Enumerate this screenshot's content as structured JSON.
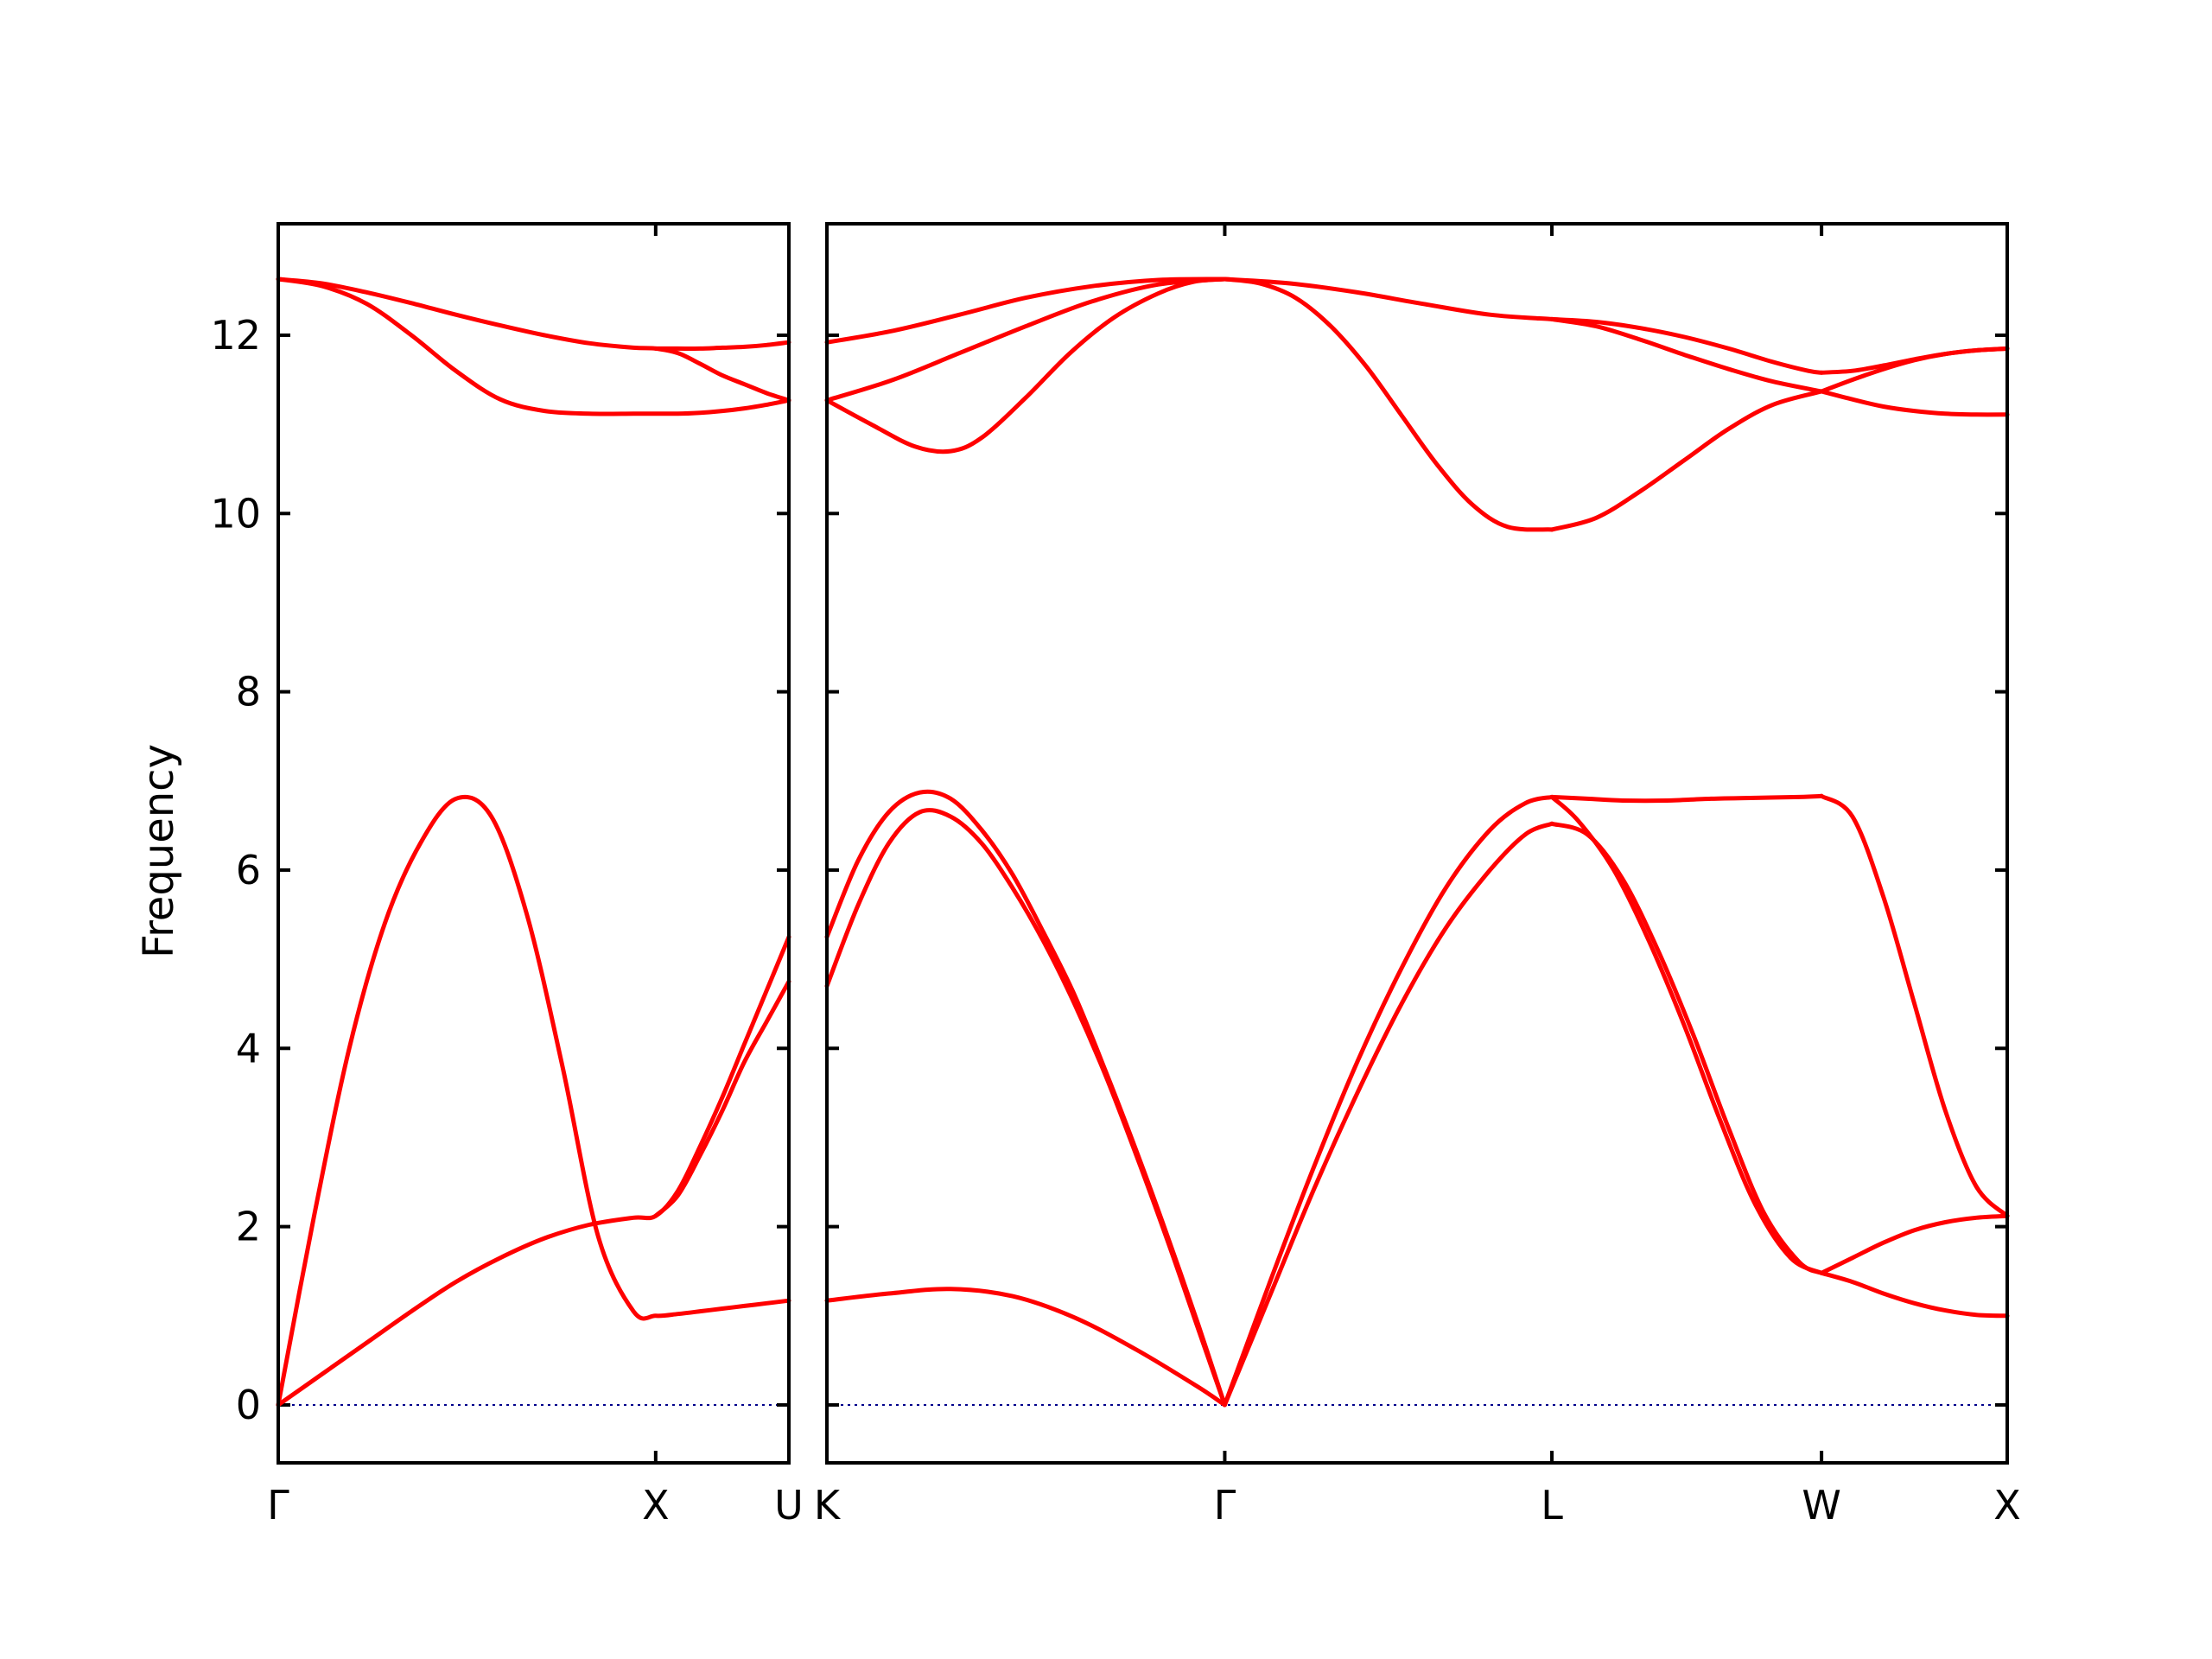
{
  "chart_data": {
    "type": "line",
    "title": "",
    "ylabel": "Frequency",
    "ylim": [
      -0.65,
      13.25
    ],
    "yticks": [
      0,
      2,
      4,
      6,
      8,
      10,
      12
    ],
    "band_color": "#ff0000",
    "zero_line_color": "#00008b",
    "panels": [
      {
        "xlim": [
          0,
          1.15
        ],
        "kpoints": [
          {
            "label": "Γ",
            "x": 0
          },
          {
            "label": "X",
            "x": 0.85
          },
          {
            "label": "U",
            "x": 1.15
          }
        ],
        "series": [
          {
            "x": [
              0,
              0.08,
              0.16,
              0.24,
              0.32,
              0.4,
              0.48,
              0.56,
              0.64,
              0.72,
              0.8,
              0.85,
              0.9,
              0.95,
              1.0,
              1.05,
              1.1,
              1.15
            ],
            "values": [
              0,
              2.1,
              4.0,
              5.4,
              6.3,
              6.8,
              6.6,
              5.5,
              3.8,
              1.9,
              1.05,
              1.0,
              1.02,
              1.05,
              1.08,
              1.11,
              1.14,
              1.17
            ]
          },
          {
            "x": [
              0,
              0.1,
              0.2,
              0.3,
              0.4,
              0.5,
              0.6,
              0.7,
              0.8,
              0.85,
              0.9,
              0.95,
              1.0,
              1.05,
              1.1,
              1.15
            ],
            "values": [
              0,
              0.35,
              0.7,
              1.05,
              1.38,
              1.65,
              1.87,
              2.02,
              2.1,
              2.12,
              2.4,
              2.9,
              3.45,
              4.05,
              4.65,
              5.25
            ]
          },
          {
            "x": [
              0.85,
              0.9,
              0.95,
              1.0,
              1.05,
              1.1,
              1.15
            ],
            "values": [
              2.12,
              2.35,
              2.8,
              3.3,
              3.85,
              4.3,
              4.75
            ]
          },
          {
            "x": [
              0,
              0.1,
              0.2,
              0.3,
              0.4,
              0.5,
              0.6,
              0.7,
              0.8,
              0.85,
              0.9,
              0.95,
              1.0,
              1.05,
              1.1,
              1.15
            ],
            "values": [
              12.63,
              12.55,
              12.35,
              12.0,
              11.6,
              11.28,
              11.15,
              11.12,
              11.12,
              11.12,
              11.12,
              11.13,
              11.15,
              11.18,
              11.22,
              11.27
            ]
          },
          {
            "x": [
              0,
              0.1,
              0.2,
              0.3,
              0.4,
              0.5,
              0.6,
              0.7,
              0.8,
              0.85,
              0.9,
              0.95,
              1.0,
              1.05,
              1.1,
              1.15
            ],
            "values": [
              12.63,
              12.58,
              12.48,
              12.36,
              12.23,
              12.11,
              12.0,
              11.91,
              11.86,
              11.85,
              11.8,
              11.68,
              11.55,
              11.45,
              11.35,
              11.27
            ]
          },
          {
            "x": [
              0.85,
              0.9,
              0.95,
              1.0,
              1.05,
              1.1,
              1.15
            ],
            "values": [
              11.85,
              11.85,
              11.85,
              11.86,
              11.87,
              11.89,
              11.92
            ]
          }
        ]
      },
      {
        "xlim": [
          0,
          2.67
        ],
        "kpoints": [
          {
            "label": "K",
            "x": 0
          },
          {
            "label": "Γ",
            "x": 0.9
          },
          {
            "label": "L",
            "x": 1.64
          },
          {
            "label": "W",
            "x": 2.25
          },
          {
            "label": "X",
            "x": 2.67
          }
        ],
        "series": [
          {
            "x": [
              0,
              0.07,
              0.14,
              0.21,
              0.28,
              0.35,
              0.42,
              0.49,
              0.56,
              0.63,
              0.7,
              0.77,
              0.84,
              0.9
            ],
            "values": [
              4.7,
              5.6,
              6.3,
              6.65,
              6.6,
              6.3,
              5.8,
              5.2,
              4.5,
              3.7,
              2.8,
              1.85,
              0.85,
              0
            ]
          },
          {
            "x": [
              0,
              0.07,
              0.14,
              0.21,
              0.28,
              0.35,
              0.42,
              0.49,
              0.56,
              0.63,
              0.7,
              0.77,
              0.84,
              0.9
            ],
            "values": [
              5.25,
              6.1,
              6.65,
              6.87,
              6.8,
              6.45,
              5.95,
              5.3,
              4.6,
              3.75,
              2.85,
              1.9,
              0.9,
              0
            ]
          },
          {
            "x": [
              0,
              0.14,
              0.28,
              0.42,
              0.56,
              0.7,
              0.84,
              0.9
            ],
            "values": [
              1.17,
              1.25,
              1.3,
              1.22,
              0.98,
              0.62,
              0.2,
              0
            ]
          },
          {
            "x": [
              0.9,
              1.0,
              1.1,
              1.2,
              1.3,
              1.4,
              1.5,
              1.58,
              1.64
            ],
            "values": [
              0,
              1.2,
              2.4,
              3.5,
              4.5,
              5.35,
              6.0,
              6.4,
              6.52
            ]
          },
          {
            "x": [
              0.9,
              1.0,
              1.1,
              1.2,
              1.3,
              1.4,
              1.5,
              1.58,
              1.64
            ],
            "values": [
              0,
              1.35,
              2.65,
              3.85,
              4.9,
              5.8,
              6.45,
              6.75,
              6.82
            ]
          },
          {
            "x": [
              1.64,
              1.72,
              1.8,
              1.88,
              1.96,
              2.04,
              2.12,
              2.2,
              2.25
            ],
            "values": [
              6.52,
              6.4,
              5.9,
              5.1,
              4.15,
              3.1,
              2.15,
              1.6,
              1.48
            ]
          },
          {
            "x": [
              1.64,
              1.7,
              1.78,
              1.86,
              1.94,
              2.02,
              2.1,
              2.18,
              2.25
            ],
            "values": [
              6.82,
              6.55,
              6.0,
              5.2,
              4.25,
              3.2,
              2.25,
              1.65,
              1.48
            ]
          },
          {
            "x": [
              1.64,
              1.72,
              1.8,
              1.9,
              2.0,
              2.1,
              2.2,
              2.25
            ],
            "values": [
              6.82,
              6.8,
              6.78,
              6.78,
              6.8,
              6.81,
              6.82,
              6.83
            ]
          },
          {
            "x": [
              2.25,
              2.32,
              2.39,
              2.46,
              2.53,
              2.6,
              2.67
            ],
            "values": [
              6.83,
              6.6,
              5.7,
              4.5,
              3.3,
              2.45,
              2.12
            ]
          },
          {
            "x": [
              2.25,
              2.32,
              2.39,
              2.46,
              2.53,
              2.6,
              2.67
            ],
            "values": [
              1.48,
              1.38,
              1.25,
              1.14,
              1.06,
              1.01,
              1.0
            ]
          },
          {
            "x": [
              2.25,
              2.32,
              2.39,
              2.46,
              2.53,
              2.6,
              2.67
            ],
            "values": [
              1.48,
              1.65,
              1.82,
              1.96,
              2.05,
              2.1,
              2.12
            ]
          },
          {
            "x": [
              0,
              0.1,
              0.2,
              0.28,
              0.35,
              0.45,
              0.55,
              0.65,
              0.75,
              0.83,
              0.9
            ],
            "values": [
              11.27,
              11.0,
              10.75,
              10.7,
              10.85,
              11.3,
              11.8,
              12.2,
              12.47,
              12.6,
              12.63
            ]
          },
          {
            "x": [
              0,
              0.15,
              0.3,
              0.45,
              0.6,
              0.75,
              0.9
            ],
            "values": [
              11.27,
              11.5,
              11.8,
              12.1,
              12.38,
              12.57,
              12.63
            ]
          },
          {
            "x": [
              0,
              0.15,
              0.3,
              0.45,
              0.6,
              0.75,
              0.9
            ],
            "values": [
              11.92,
              12.05,
              12.23,
              12.42,
              12.55,
              12.62,
              12.63
            ]
          },
          {
            "x": [
              0.9,
              0.98,
              1.06,
              1.14,
              1.22,
              1.3,
              1.38,
              1.46,
              1.54,
              1.64
            ],
            "values": [
              12.63,
              12.58,
              12.42,
              12.1,
              11.65,
              11.1,
              10.55,
              10.1,
              9.85,
              9.82
            ]
          },
          {
            "x": [
              0.9,
              1.05,
              1.2,
              1.35,
              1.5,
              1.64
            ],
            "values": [
              12.63,
              12.58,
              12.48,
              12.35,
              12.23,
              12.18
            ]
          },
          {
            "x": [
              1.64,
              1.74,
              1.84,
              1.94,
              2.04,
              2.14,
              2.25
            ],
            "values": [
              9.82,
              9.95,
              10.25,
              10.6,
              10.95,
              11.22,
              11.37
            ]
          },
          {
            "x": [
              1.64,
              1.74,
              1.84,
              1.94,
              2.04,
              2.14,
              2.25
            ],
            "values": [
              12.18,
              12.1,
              11.95,
              11.78,
              11.62,
              11.48,
              11.37
            ]
          },
          {
            "x": [
              1.64,
              1.74,
              1.84,
              1.94,
              2.04,
              2.14,
              2.22,
              2.25
            ],
            "values": [
              12.18,
              12.15,
              12.08,
              11.98,
              11.85,
              11.7,
              11.6,
              11.58
            ]
          },
          {
            "x": [
              2.25,
              2.32,
              2.39,
              2.46,
              2.53,
              2.6,
              2.67
            ],
            "values": [
              11.37,
              11.28,
              11.2,
              11.15,
              11.12,
              11.11,
              11.11
            ]
          },
          {
            "x": [
              2.25,
              2.32,
              2.39,
              2.46,
              2.53,
              2.6,
              2.67
            ],
            "values": [
              11.37,
              11.5,
              11.62,
              11.72,
              11.79,
              11.83,
              11.85
            ]
          },
          {
            "x": [
              2.25,
              2.32,
              2.39,
              2.46,
              2.53,
              2.6,
              2.67
            ],
            "values": [
              11.58,
              11.6,
              11.66,
              11.73,
              11.79,
              11.83,
              11.85
            ]
          }
        ]
      }
    ]
  }
}
